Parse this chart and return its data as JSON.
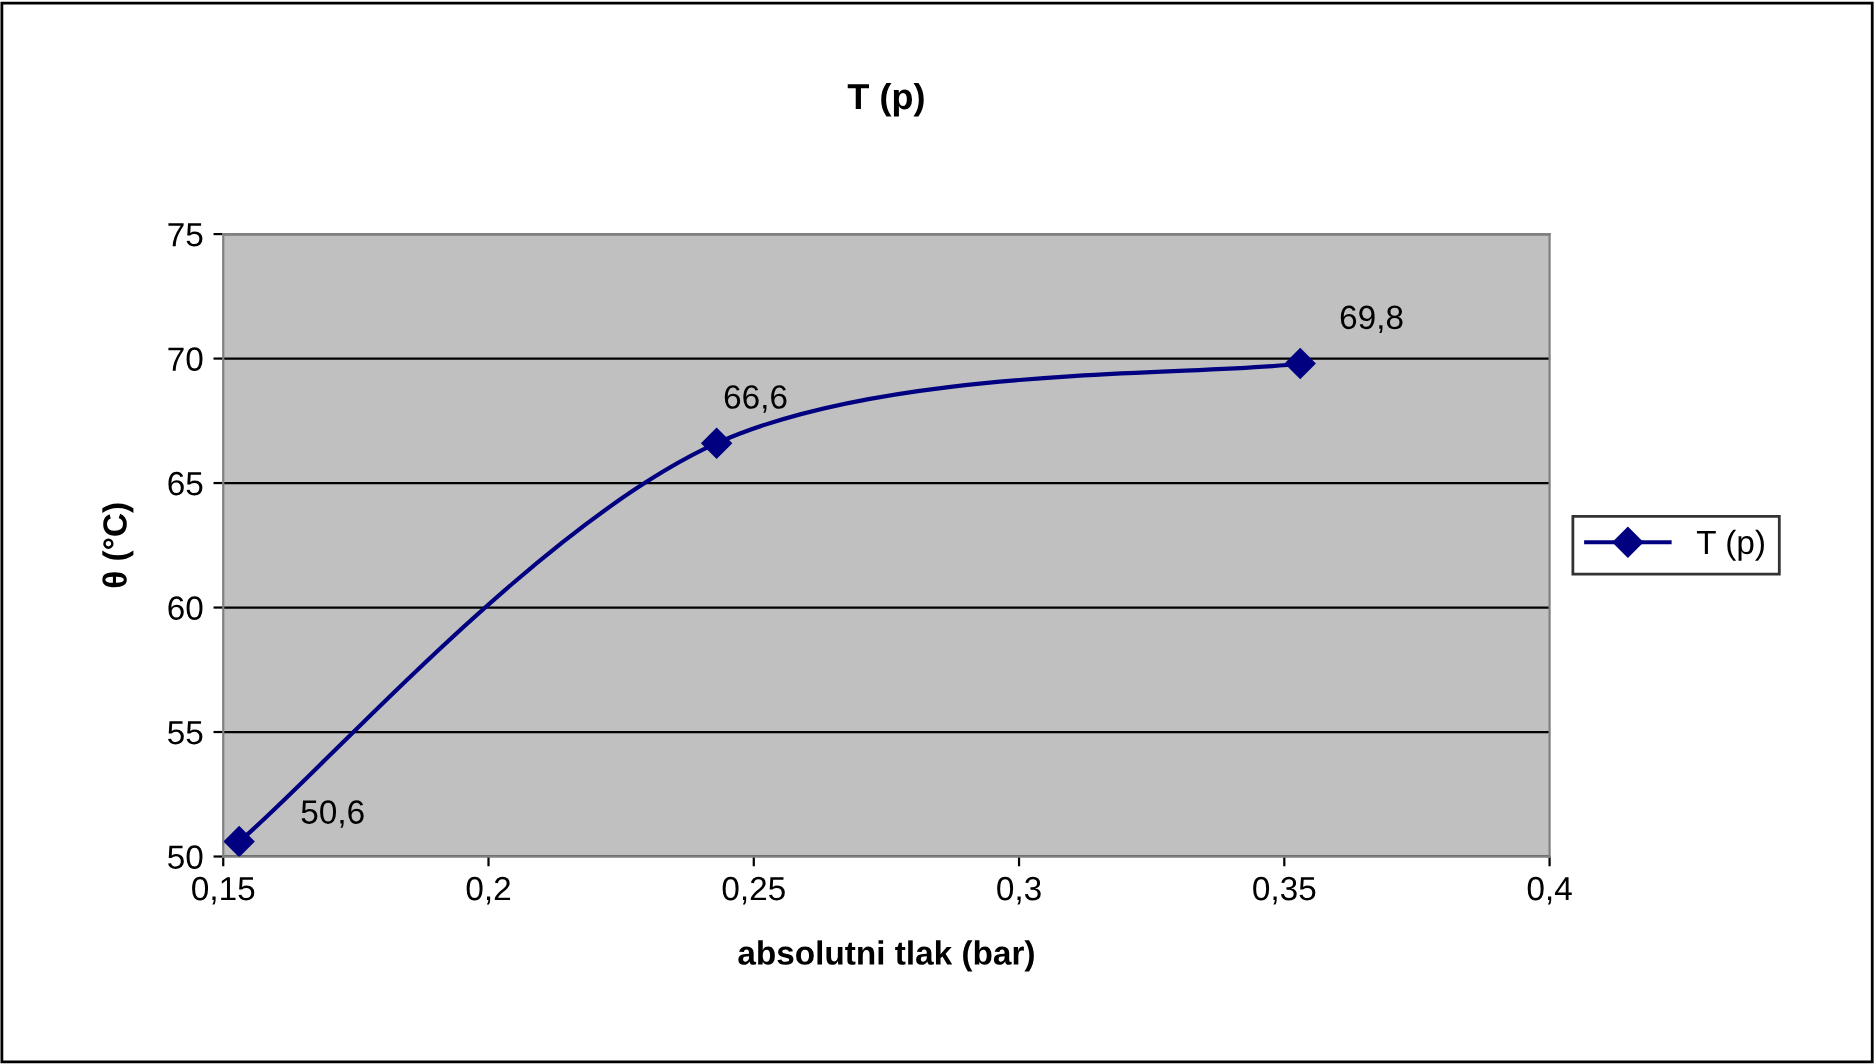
{
  "chart_data": {
    "type": "line",
    "title": "T (p)",
    "xlabel": "absolutni tlak (bar)",
    "ylabel": "θ (°C)",
    "x": [
      0.153,
      0.243,
      0.353
    ],
    "series": [
      {
        "name": "T (p)",
        "color": "#000080",
        "values": [
          50.6,
          66.6,
          69.8
        ],
        "value_labels": [
          "50,6",
          "66,6",
          "69,8"
        ]
      }
    ],
    "xlim": [
      0.15,
      0.4
    ],
    "xticks": [
      {
        "value": 0.15,
        "label": "0,15"
      },
      {
        "value": 0.2,
        "label": "0,2"
      },
      {
        "value": 0.25,
        "label": "0,25"
      },
      {
        "value": 0.3,
        "label": "0,3"
      },
      {
        "value": 0.35,
        "label": "0,35"
      },
      {
        "value": 0.4,
        "label": "0,4"
      }
    ],
    "ylim": [
      50,
      75
    ],
    "yticks": [
      50,
      55,
      60,
      65,
      70,
      75
    ],
    "grid": "y",
    "legend": "right",
    "marker": "diamond",
    "line_style": "solid"
  }
}
